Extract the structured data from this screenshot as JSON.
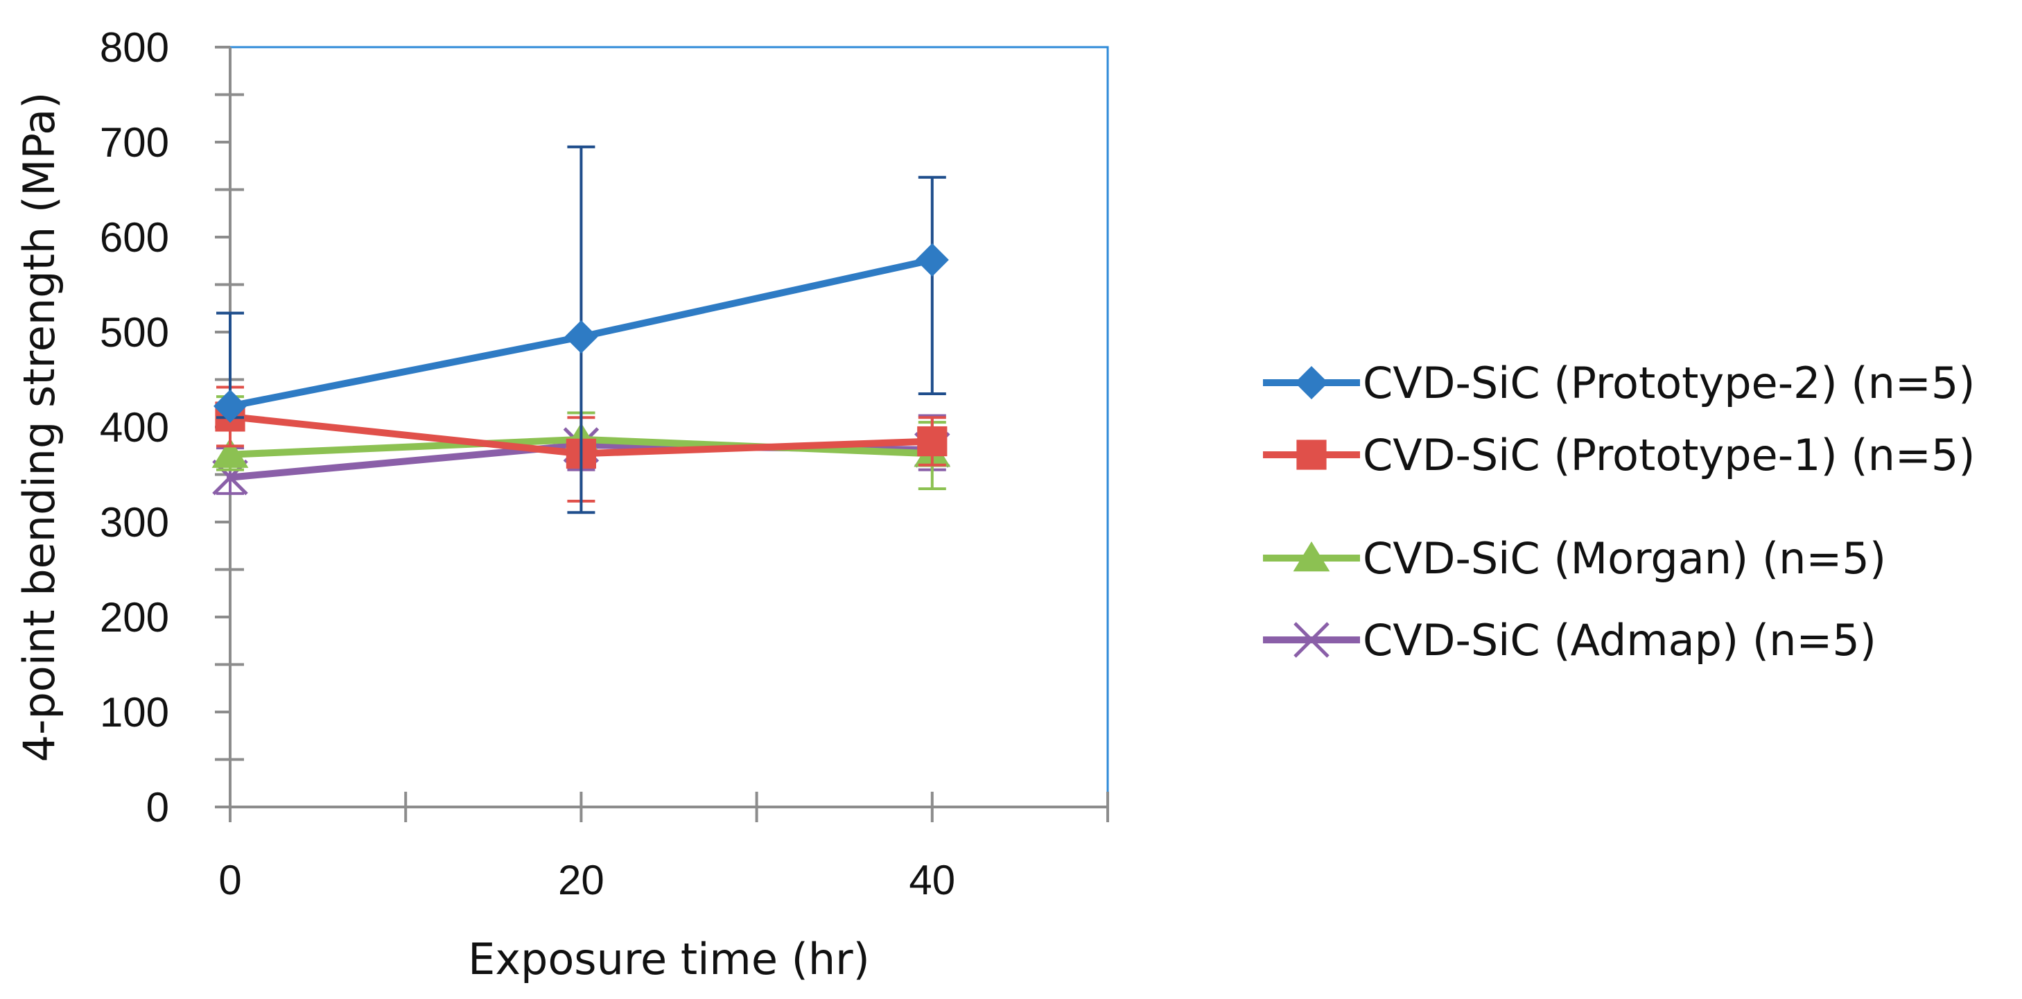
{
  "chart_data": {
    "type": "line",
    "title": "",
    "xlabel": "Exposure time (hr)",
    "ylabel": "4-point bending strength (MPa)",
    "xlim": [
      0,
      50
    ],
    "ylim": [
      0,
      800
    ],
    "x_ticks": [
      0,
      20,
      40
    ],
    "x_minor_step": 10,
    "y_ticks": [
      0,
      100,
      200,
      300,
      400,
      500,
      600,
      700,
      800
    ],
    "y_minor_step": 50,
    "grid": false,
    "legend_position": "right",
    "axis_color": "#8c8c8c",
    "frame_color": "#2e8ad8",
    "series": [
      {
        "name": "CVD-SiC (Prototype-2) (n=5)",
        "color": "#2e7bc4",
        "errorbar_color": "#1f4e8c",
        "marker": "diamond",
        "x": [
          0,
          20,
          40
        ],
        "y": [
          422,
          495,
          576
        ],
        "error_low": [
          410,
          310,
          435
        ],
        "error_high": [
          520,
          695,
          663
        ]
      },
      {
        "name": "CVD-SiC (Prototype-1) (n=5)",
        "color": "#e0504a",
        "errorbar_color": "#e0504a",
        "marker": "square",
        "x": [
          0,
          20,
          40
        ],
        "y": [
          411,
          372,
          385
        ],
        "error_low": [
          380,
          322,
          360
        ],
        "error_high": [
          442,
          410,
          410
        ]
      },
      {
        "name": "CVD-SiC (Morgan) (n=5)",
        "color": "#8cc152",
        "errorbar_color": "#8cc152",
        "marker": "triangle",
        "x": [
          0,
          20,
          40
        ],
        "y": [
          371,
          387,
          372
        ],
        "error_low": [
          355,
          360,
          335
        ],
        "error_high": [
          432,
          415,
          405
        ]
      },
      {
        "name": "CVD-SiC (Admap) (n=5)",
        "color": "#8a5fa8",
        "errorbar_color": "#8a5fa8",
        "marker": "x",
        "x": [
          0,
          20,
          40
        ],
        "y": [
          347,
          381,
          376
        ],
        "error_low": [
          330,
          355,
          355
        ],
        "error_high": [
          378,
          415,
          412
        ]
      }
    ]
  }
}
